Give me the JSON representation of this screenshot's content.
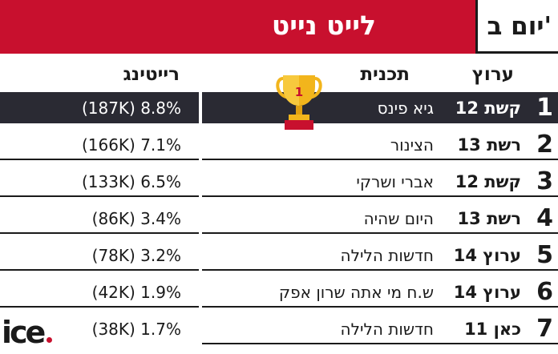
{
  "header": {
    "title": "לייט נייט",
    "day": "יום ב'"
  },
  "columns": {
    "channel": "ערוץ",
    "show": "תכנית",
    "rating": "רייטינג"
  },
  "trophy": {
    "rank": "1"
  },
  "rows": [
    {
      "rank": "1",
      "channel": "קשת 12",
      "show": "גיא פינס",
      "rating": "(187K) 8.8%"
    },
    {
      "rank": "2",
      "channel": "רשת 13",
      "show": "הצינור",
      "rating": "(166K) 7.1%"
    },
    {
      "rank": "3",
      "channel": "קשת 12",
      "show": "אברי ושרקי",
      "rating": "(133K) 6.5%"
    },
    {
      "rank": "4",
      "channel": "רשת 13",
      "show": "היום שהיה",
      "rating": "(86K) 3.4%"
    },
    {
      "rank": "5",
      "channel": "ערוץ 14",
      "show": "חדשות הלילה",
      "rating": "(78K) 3.2%"
    },
    {
      "rank": "6",
      "channel": "ערוץ 14",
      "show": "ש.ח מי אתה שרון אפק",
      "rating": "(42K) 1.9%"
    },
    {
      "rank": "7",
      "channel": "כאן 11",
      "show": "חדשות הלילה",
      "rating": "(38K) 1.7%"
    }
  ],
  "logo": {
    "text": "ice"
  },
  "colors": {
    "accent": "#c8102e",
    "highlight_row": "#2a2a33",
    "trophy_gold": "#f2b51c"
  }
}
